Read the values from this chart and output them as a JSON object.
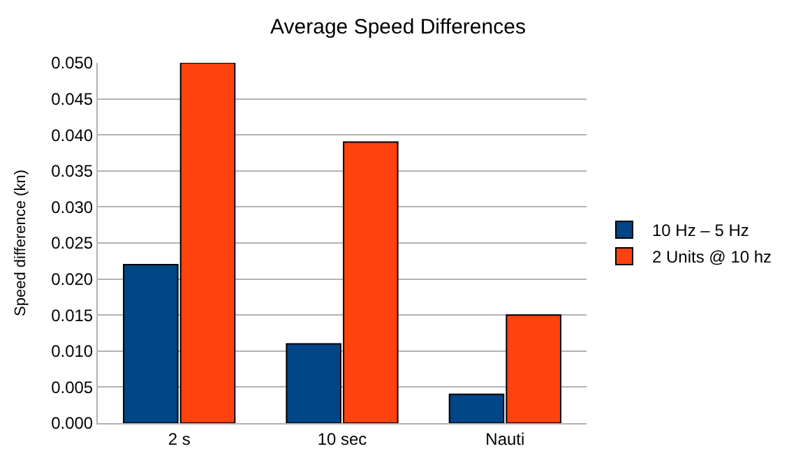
{
  "chart_data": {
    "type": "bar",
    "title": "Average Speed Differences",
    "ylabel": "Speed difference (kn)",
    "categories": [
      "2 s",
      "10 sec",
      "Nauti"
    ],
    "series": [
      {
        "name": "10 Hz – 5 Hz",
        "color": "#004586",
        "values": [
          0.022,
          0.011,
          0.004
        ]
      },
      {
        "name": "2 Units @ 10 hz",
        "color": "#ff420e",
        "values": [
          0.05,
          0.039,
          0.015
        ]
      }
    ],
    "ylim": [
      0,
      0.05
    ],
    "yticks": [
      {
        "value": 0,
        "label": "0.000"
      },
      {
        "value": 0.005,
        "label": "0.005"
      },
      {
        "value": 0.01,
        "label": "0.010"
      },
      {
        "value": 0.015,
        "label": "0.015"
      },
      {
        "value": 0.02,
        "label": "0.020"
      },
      {
        "value": 0.025,
        "label": "0.025"
      },
      {
        "value": 0.03,
        "label": "0.030"
      },
      {
        "value": 0.035,
        "label": "0.035"
      },
      {
        "value": 0.04,
        "label": "0.040"
      },
      {
        "value": 0.045,
        "label": "0.045"
      },
      {
        "value": 0.05,
        "label": "0.050"
      }
    ],
    "grid": "y",
    "legend": "right"
  }
}
